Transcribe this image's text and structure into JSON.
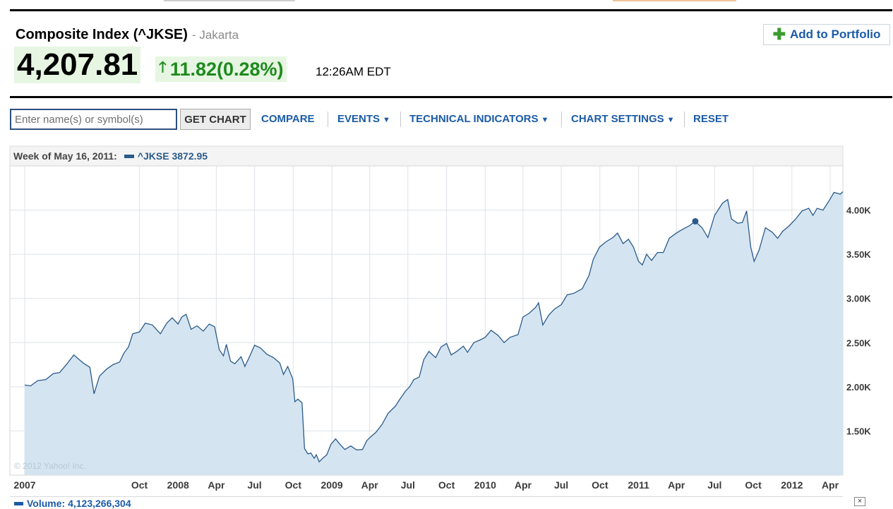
{
  "quote": {
    "name": "Composite Index (^JKSE)",
    "exchange": "- Jakarta",
    "price": "4,207.81",
    "change": "11.82",
    "change_pct": "(0.28%)",
    "time": "12:26AM EDT",
    "direction": "up",
    "up_color": "#1e8a1e"
  },
  "actions": {
    "add_portfolio": "Add to Portfolio"
  },
  "toolbar": {
    "input_placeholder": "Enter name(s) or symbol(s)",
    "get_chart": "GET CHART",
    "compare": "COMPARE",
    "events": "EVENTS",
    "technical_indicators": "TECHNICAL INDICATORS",
    "chart_settings": "CHART SETTINGS",
    "reset": "RESET"
  },
  "hover": {
    "label": "Week of May 16, 2011:",
    "symbol_value": "^JKSE 3872.95"
  },
  "copyright": "© 2012 Yahoo! Inc.",
  "volume": {
    "label": "Volume: 4,123,266,304",
    "close": "×"
  },
  "chart_data": {
    "type": "area",
    "series_name": "^JKSE",
    "line_color": "#2b5a8a",
    "fill_color": "#d4e5f1",
    "ylim": [
      1000,
      4500
    ],
    "yticks": [
      1500,
      2000,
      2500,
      3000,
      3500,
      4000
    ],
    "ytick_labels": [
      "1.50K",
      "2.00K",
      "2.50K",
      "3.00K",
      "3.50K",
      "4.00K"
    ],
    "grid": true,
    "x_labels": [
      {
        "label": "2007",
        "date": "2007-01-01"
      },
      {
        "label": "Oct",
        "date": "2007-10-01"
      },
      {
        "label": "2008",
        "date": "2008-01-01"
      },
      {
        "label": "Apr",
        "date": "2008-04-01"
      },
      {
        "label": "Jul",
        "date": "2008-07-01"
      },
      {
        "label": "Oct",
        "date": "2008-10-01"
      },
      {
        "label": "2009",
        "date": "2009-01-01"
      },
      {
        "label": "Apr",
        "date": "2009-04-01"
      },
      {
        "label": "Jul",
        "date": "2009-07-01"
      },
      {
        "label": "Oct",
        "date": "2009-10-01"
      },
      {
        "label": "2010",
        "date": "2010-01-01"
      },
      {
        "label": "Apr",
        "date": "2010-04-01"
      },
      {
        "label": "Jul",
        "date": "2010-07-01"
      },
      {
        "label": "Oct",
        "date": "2010-10-01"
      },
      {
        "label": "2011",
        "date": "2011-01-01"
      },
      {
        "label": "Apr",
        "date": "2011-04-01"
      },
      {
        "label": "Jul",
        "date": "2011-07-01"
      },
      {
        "label": "Oct",
        "date": "2011-10-01"
      },
      {
        "label": "2012",
        "date": "2012-01-01"
      },
      {
        "label": "Apr",
        "date": "2012-04-01"
      }
    ],
    "highlight": {
      "date": "2011-05-16",
      "value": 3872.95
    },
    "points": [
      [
        "2007-01-01",
        2020
      ],
      [
        "2007-01-15",
        2010
      ],
      [
        "2007-02-01",
        2070
      ],
      [
        "2007-02-20",
        2080
      ],
      [
        "2007-03-10",
        2150
      ],
      [
        "2007-03-25",
        2160
      ],
      [
        "2007-04-10",
        2250
      ],
      [
        "2007-04-28",
        2360
      ],
      [
        "2007-05-20",
        2270
      ],
      [
        "2007-06-05",
        2220
      ],
      [
        "2007-06-15",
        1920
      ],
      [
        "2007-06-28",
        2120
      ],
      [
        "2007-07-15",
        2200
      ],
      [
        "2007-07-30",
        2250
      ],
      [
        "2007-08-15",
        2280
      ],
      [
        "2007-08-25",
        2380
      ],
      [
        "2007-09-05",
        2450
      ],
      [
        "2007-09-15",
        2600
      ],
      [
        "2007-10-01",
        2620
      ],
      [
        "2007-10-15",
        2720
      ],
      [
        "2007-11-01",
        2700
      ],
      [
        "2007-11-20",
        2600
      ],
      [
        "2007-12-05",
        2720
      ],
      [
        "2007-12-18",
        2780
      ],
      [
        "2008-01-01",
        2710
      ],
      [
        "2008-01-10",
        2790
      ],
      [
        "2008-01-20",
        2820
      ],
      [
        "2008-02-01",
        2650
      ],
      [
        "2008-02-15",
        2690
      ],
      [
        "2008-03-01",
        2630
      ],
      [
        "2008-03-15",
        2710
      ],
      [
        "2008-03-28",
        2680
      ],
      [
        "2008-04-08",
        2420
      ],
      [
        "2008-04-18",
        2350
      ],
      [
        "2008-04-25",
        2480
      ],
      [
        "2008-05-05",
        2290
      ],
      [
        "2008-05-15",
        2260
      ],
      [
        "2008-05-30",
        2340
      ],
      [
        "2008-06-08",
        2230
      ],
      [
        "2008-06-20",
        2350
      ],
      [
        "2008-07-01",
        2470
      ],
      [
        "2008-07-15",
        2440
      ],
      [
        "2008-07-30",
        2370
      ],
      [
        "2008-08-15",
        2330
      ],
      [
        "2008-08-30",
        2270
      ],
      [
        "2008-09-08",
        2140
      ],
      [
        "2008-09-18",
        2230
      ],
      [
        "2008-09-30",
        2090
      ],
      [
        "2008-10-05",
        1830
      ],
      [
        "2008-10-12",
        1860
      ],
      [
        "2008-10-22",
        1820
      ],
      [
        "2008-10-28",
        1300
      ],
      [
        "2008-11-05",
        1240
      ],
      [
        "2008-11-12",
        1250
      ],
      [
        "2008-11-20",
        1190
      ],
      [
        "2008-11-25",
        1230
      ],
      [
        "2008-12-02",
        1150
      ],
      [
        "2008-12-10",
        1190
      ],
      [
        "2008-12-20",
        1230
      ],
      [
        "2008-12-30",
        1350
      ],
      [
        "2009-01-10",
        1410
      ],
      [
        "2009-01-20",
        1350
      ],
      [
        "2009-02-01",
        1290
      ],
      [
        "2009-02-15",
        1330
      ],
      [
        "2009-03-01",
        1285
      ],
      [
        "2009-03-15",
        1290
      ],
      [
        "2009-03-25",
        1390
      ],
      [
        "2009-04-05",
        1440
      ],
      [
        "2009-04-15",
        1480
      ],
      [
        "2009-04-30",
        1570
      ],
      [
        "2009-05-15",
        1700
      ],
      [
        "2009-06-01",
        1780
      ],
      [
        "2009-06-12",
        1860
      ],
      [
        "2009-06-25",
        1950
      ],
      [
        "2009-07-05",
        2000
      ],
      [
        "2009-07-15",
        2080
      ],
      [
        "2009-07-28",
        2110
      ],
      [
        "2009-08-08",
        2310
      ],
      [
        "2009-08-20",
        2400
      ],
      [
        "2009-09-05",
        2330
      ],
      [
        "2009-09-18",
        2450
      ],
      [
        "2009-10-01",
        2490
      ],
      [
        "2009-10-12",
        2360
      ],
      [
        "2009-10-25",
        2400
      ],
      [
        "2009-11-10",
        2460
      ],
      [
        "2009-11-20",
        2390
      ],
      [
        "2009-12-05",
        2500
      ],
      [
        "2009-12-20",
        2530
      ],
      [
        "2010-01-01",
        2560
      ],
      [
        "2010-01-15",
        2640
      ],
      [
        "2010-02-01",
        2580
      ],
      [
        "2010-02-15",
        2500
      ],
      [
        "2010-03-01",
        2560
      ],
      [
        "2010-03-20",
        2590
      ],
      [
        "2010-04-01",
        2790
      ],
      [
        "2010-04-15",
        2830
      ],
      [
        "2010-05-01",
        2900
      ],
      [
        "2010-05-08",
        2950
      ],
      [
        "2010-05-18",
        2700
      ],
      [
        "2010-06-01",
        2810
      ],
      [
        "2010-06-15",
        2880
      ],
      [
        "2010-07-01",
        2930
      ],
      [
        "2010-07-15",
        3040
      ],
      [
        "2010-08-01",
        3060
      ],
      [
        "2010-08-20",
        3110
      ],
      [
        "2010-09-05",
        3260
      ],
      [
        "2010-09-15",
        3440
      ],
      [
        "2010-09-30",
        3580
      ],
      [
        "2010-10-15",
        3640
      ],
      [
        "2010-11-01",
        3690
      ],
      [
        "2010-11-12",
        3740
      ],
      [
        "2010-11-25",
        3620
      ],
      [
        "2010-12-08",
        3670
      ],
      [
        "2010-12-20",
        3580
      ],
      [
        "2011-01-01",
        3420
      ],
      [
        "2011-01-10",
        3380
      ],
      [
        "2011-01-20",
        3500
      ],
      [
        "2011-02-01",
        3430
      ],
      [
        "2011-02-15",
        3520
      ],
      [
        "2011-03-01",
        3520
      ],
      [
        "2011-03-15",
        3680
      ],
      [
        "2011-04-01",
        3740
      ],
      [
        "2011-04-15",
        3780
      ],
      [
        "2011-05-01",
        3820
      ],
      [
        "2011-05-16",
        3872.95
      ],
      [
        "2011-06-01",
        3800
      ],
      [
        "2011-06-15",
        3690
      ],
      [
        "2011-07-01",
        3940
      ],
      [
        "2011-07-20",
        4080
      ],
      [
        "2011-08-01",
        4120
      ],
      [
        "2011-08-10",
        3900
      ],
      [
        "2011-08-25",
        3850
      ],
      [
        "2011-09-05",
        3860
      ],
      [
        "2011-09-15",
        3990
      ],
      [
        "2011-09-25",
        3580
      ],
      [
        "2011-10-03",
        3420
      ],
      [
        "2011-10-15",
        3550
      ],
      [
        "2011-10-30",
        3800
      ],
      [
        "2011-11-15",
        3750
      ],
      [
        "2011-11-28",
        3680
      ],
      [
        "2011-12-10",
        3760
      ],
      [
        "2011-12-25",
        3820
      ],
      [
        "2012-01-10",
        3900
      ],
      [
        "2012-01-25",
        3990
      ],
      [
        "2012-02-10",
        4020
      ],
      [
        "2012-02-20",
        3940
      ],
      [
        "2012-03-01",
        4020
      ],
      [
        "2012-03-15",
        4000
      ],
      [
        "2012-03-30",
        4110
      ],
      [
        "2012-04-10",
        4200
      ],
      [
        "2012-04-25",
        4180
      ],
      [
        "2012-05-01",
        4207.81
      ]
    ]
  }
}
